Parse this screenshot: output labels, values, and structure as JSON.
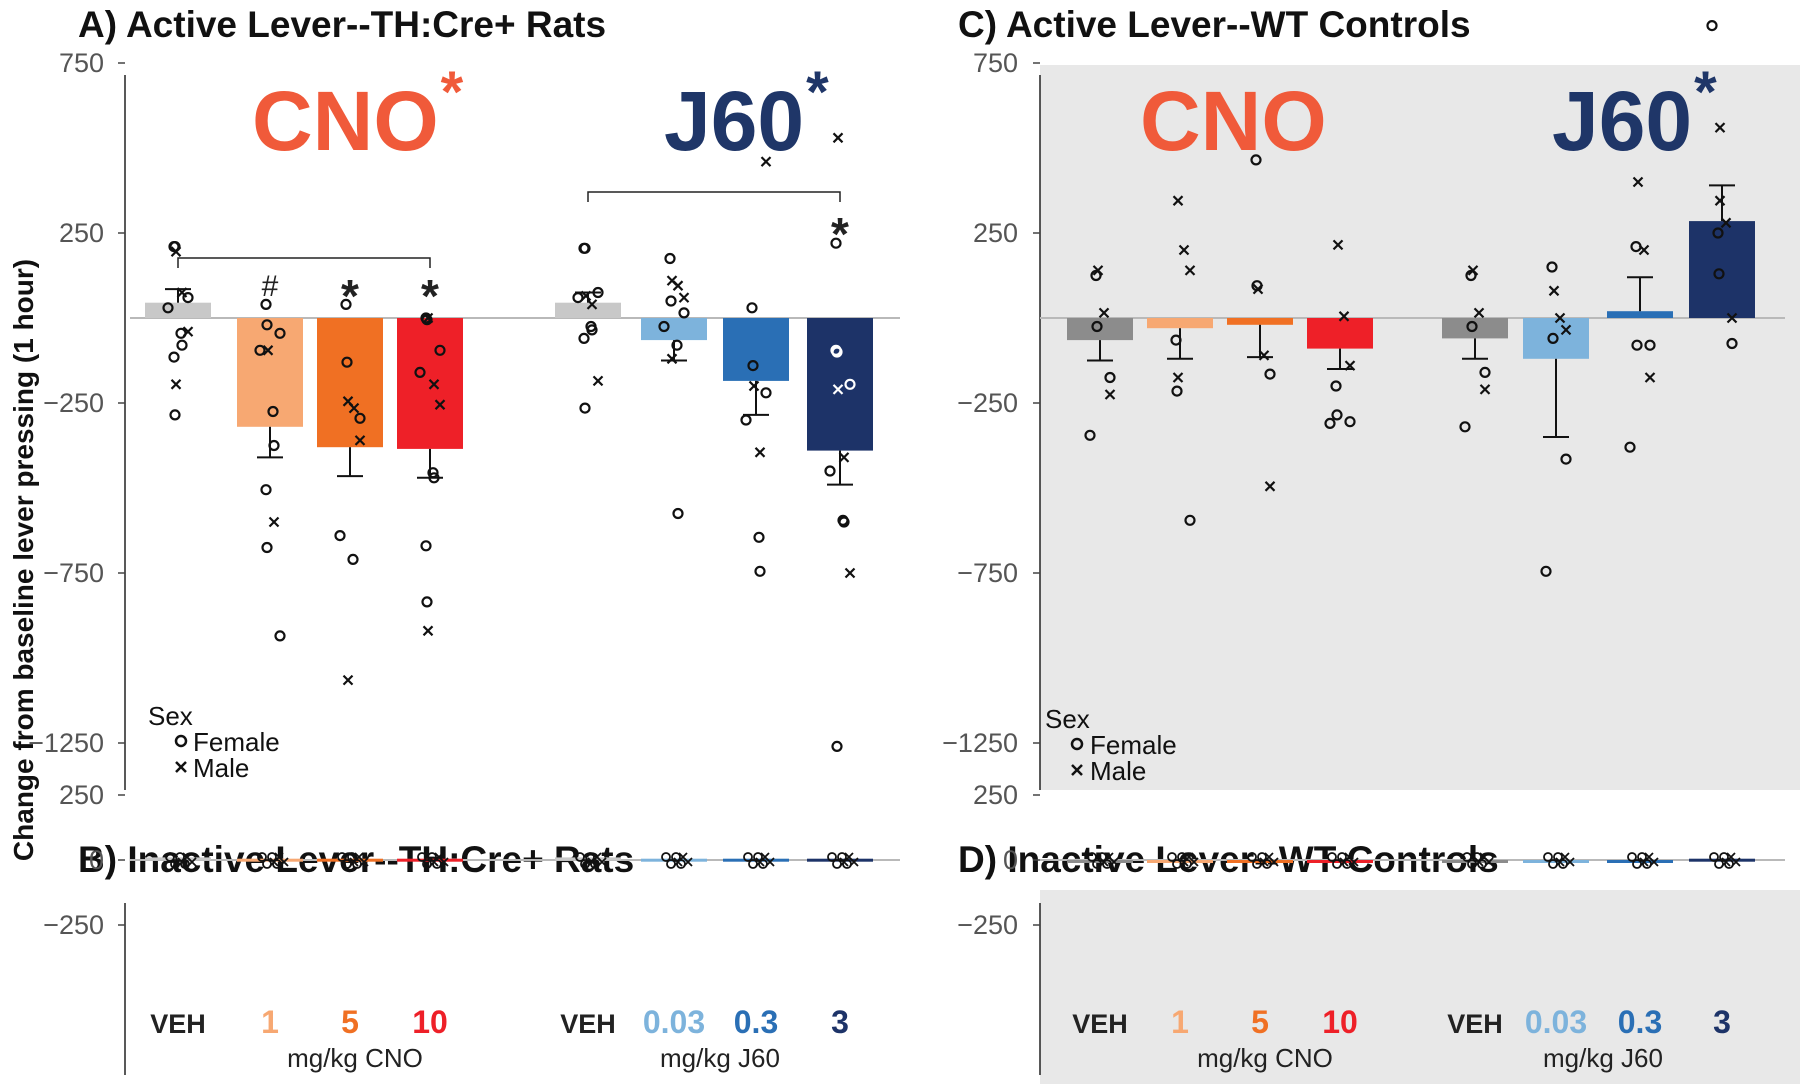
{
  "figure": {
    "y_axis_label": "Change from baseline lever pressing (1 hour)",
    "legend": {
      "title": "Sex",
      "female": "Female",
      "male": "Male"
    },
    "dose_labels": {
      "cno": [
        "VEH",
        "1",
        "5",
        "10"
      ],
      "j60": [
        "VEH",
        "0.03",
        "0.3",
        "3"
      ]
    },
    "unit_labels": {
      "cno": "mg/kg CNO",
      "j60": "mg/kg J60"
    },
    "drug_labels": {
      "cno": "CNO",
      "j60": "J60",
      "star": "*"
    },
    "colors": {
      "cno": [
        "#c8c8c8",
        "#f7a872",
        "#f07023",
        "#ee2028"
      ],
      "j60": [
        "#c8c8c8",
        "#7db3dc",
        "#2a6fb5",
        "#1d3368"
      ],
      "wt_veh": "#8c8c8c",
      "cno_text": "#f05a3a",
      "j60_text": "#1f3668",
      "panel_bg_wt": "#e8e8e8"
    }
  },
  "chart_data": [
    {
      "type": "bar",
      "title": "A) Active Lever--TH:Cre+ Rats",
      "ylabel": "Change from baseline lever pressing (1 hour)",
      "ylim": [
        -1250,
        850
      ],
      "yticks": [
        "750",
        "250",
        "-250",
        "-750",
        "-1250"
      ],
      "categories": [
        "VEH",
        "1",
        "5",
        "10",
        "VEH",
        "0.03",
        "0.3",
        "3"
      ],
      "groups": [
        "mg/kg CNO",
        "mg/kg J60"
      ],
      "values": [
        45,
        -320,
        -380,
        -385,
        45,
        -65,
        -185,
        -390
      ],
      "error": [
        40,
        90,
        85,
        85,
        30,
        60,
        100,
        100
      ],
      "significance": [
        "",
        "#",
        "*",
        "*",
        "",
        "",
        "",
        "*"
      ],
      "brackets": [
        [
          0,
          3
        ],
        [
          4,
          7
        ]
      ],
      "drug_significance": {
        "CNO": "*",
        "J60": "*"
      },
      "points": [
        {
          "f": [
            210,
            210,
            60,
            30,
            -45,
            -80,
            -115,
            -285
          ],
          "m": [
            195,
            75,
            -40,
            -195
          ]
        },
        {
          "f": [
            40,
            -20,
            -45,
            -95,
            -275,
            -375,
            -505,
            -675,
            -935
          ],
          "m": [
            -95,
            -600
          ]
        },
        {
          "f": [
            40,
            -130,
            -295,
            -640,
            -710
          ],
          "m": [
            -245,
            -265,
            -360,
            -1065
          ]
        },
        {
          "f": [
            0,
            -5,
            -95,
            -160,
            -455,
            -470,
            -670,
            -835
          ],
          "m": [
            0,
            -195,
            -255,
            -920
          ]
        },
        {
          "f": [
            205,
            205,
            75,
            60,
            -25,
            -35,
            -60,
            -265
          ],
          "m": [
            65,
            40,
            -185
          ]
        },
        {
          "f": [
            175,
            50,
            15,
            -25,
            -80,
            -575
          ],
          "m": [
            110,
            95,
            60,
            -120
          ]
        },
        {
          "f": [
            30,
            -140,
            -220,
            -300,
            -645,
            -745
          ],
          "m": [
            -200,
            -395,
            460
          ]
        },
        {
          "f": [
            -95,
            -100,
            -195,
            -450,
            -595,
            -600,
            220,
            -1260
          ],
          "m": [
            -210,
            -410,
            -750,
            530
          ]
        }
      ]
    },
    {
      "type": "bar",
      "title": "B) Inactive Lever--TH:Cre+ Rats",
      "ylim": [
        -250,
        250
      ],
      "yticks": [
        "250",
        "0",
        "-250"
      ],
      "categories": [
        "VEH",
        "1",
        "5",
        "10",
        "VEH",
        "0.03",
        "0.3",
        "3"
      ],
      "values": [
        10,
        5,
        5,
        5,
        10,
        5,
        5,
        5
      ]
    },
    {
      "type": "bar",
      "title": "C) Active Lever--WT Controls",
      "ylim": [
        -1250,
        850
      ],
      "yticks": [
        "750",
        "250",
        "-250",
        "-750",
        "-1250"
      ],
      "categories": [
        "VEH",
        "1",
        "5",
        "10",
        "VEH",
        "0.03",
        "0.3",
        "3"
      ],
      "values": [
        -65,
        -30,
        -20,
        -90,
        -60,
        -120,
        20,
        285
      ],
      "error": [
        60,
        90,
        95,
        60,
        60,
        230,
        100,
        105
      ],
      "drug_significance": {
        "CNO": "",
        "J60": "*"
      },
      "points": [
        {
          "f": [
            125,
            -25,
            -175,
            -345
          ],
          "m": [
            140,
            15,
            -225
          ]
        },
        {
          "f": [
            -65,
            -215,
            -595
          ],
          "m": [
            345,
            200,
            140,
            -175
          ]
        },
        {
          "f": [
            465,
            95,
            -165
          ],
          "m": [
            85,
            -110,
            -495
          ]
        },
        {
          "f": [
            -200,
            -285,
            -305,
            -310
          ],
          "m": [
            215,
            5,
            -140
          ]
        },
        {
          "f": [
            125,
            -25,
            -160,
            -320
          ],
          "m": [
            140,
            15,
            -210
          ]
        },
        {
          "f": [
            150,
            -60,
            -415,
            -745
          ],
          "m": [
            80,
            0,
            -35
          ]
        },
        {
          "f": [
            210,
            -80,
            -80,
            -380
          ],
          "m": [
            400,
            200,
            -175
          ]
        },
        {
          "f": [
            250,
            130,
            -75,
            860
          ],
          "m": [
            345,
            280,
            0,
            560
          ]
        }
      ]
    },
    {
      "type": "bar",
      "title": "D) Inactive Lever--WT Controls",
      "ylim": [
        -250,
        250
      ],
      "yticks": [
        "250",
        "0",
        "-250"
      ],
      "categories": [
        "VEH",
        "1",
        "5",
        "10",
        "VEH",
        "0.03",
        "0.3",
        "3"
      ],
      "values": [
        0,
        0,
        0,
        0,
        0,
        0,
        0,
        5
      ]
    }
  ]
}
